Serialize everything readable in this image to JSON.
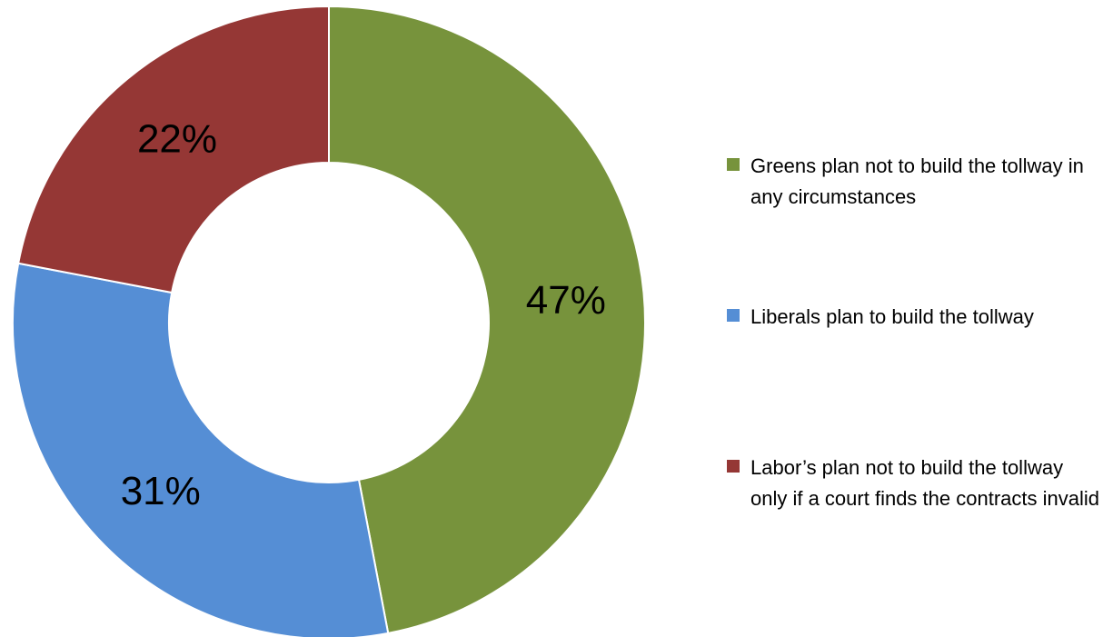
{
  "chart_data": {
    "type": "pie",
    "variant": "donut",
    "title": "",
    "legend_position": "right",
    "slices": [
      {
        "label": "Greens plan not to build the tollway in any circumstances",
        "value": 47,
        "display": "47%",
        "color": "#77933C"
      },
      {
        "label": "Liberals plan to build the tollway",
        "value": 31,
        "display": "31%",
        "color": "#558ED5"
      },
      {
        "label": "Labor’s plan not to build the tollway only if a court finds the contracts invalid",
        "value": 22,
        "display": "22%",
        "color": "#953735"
      }
    ]
  }
}
